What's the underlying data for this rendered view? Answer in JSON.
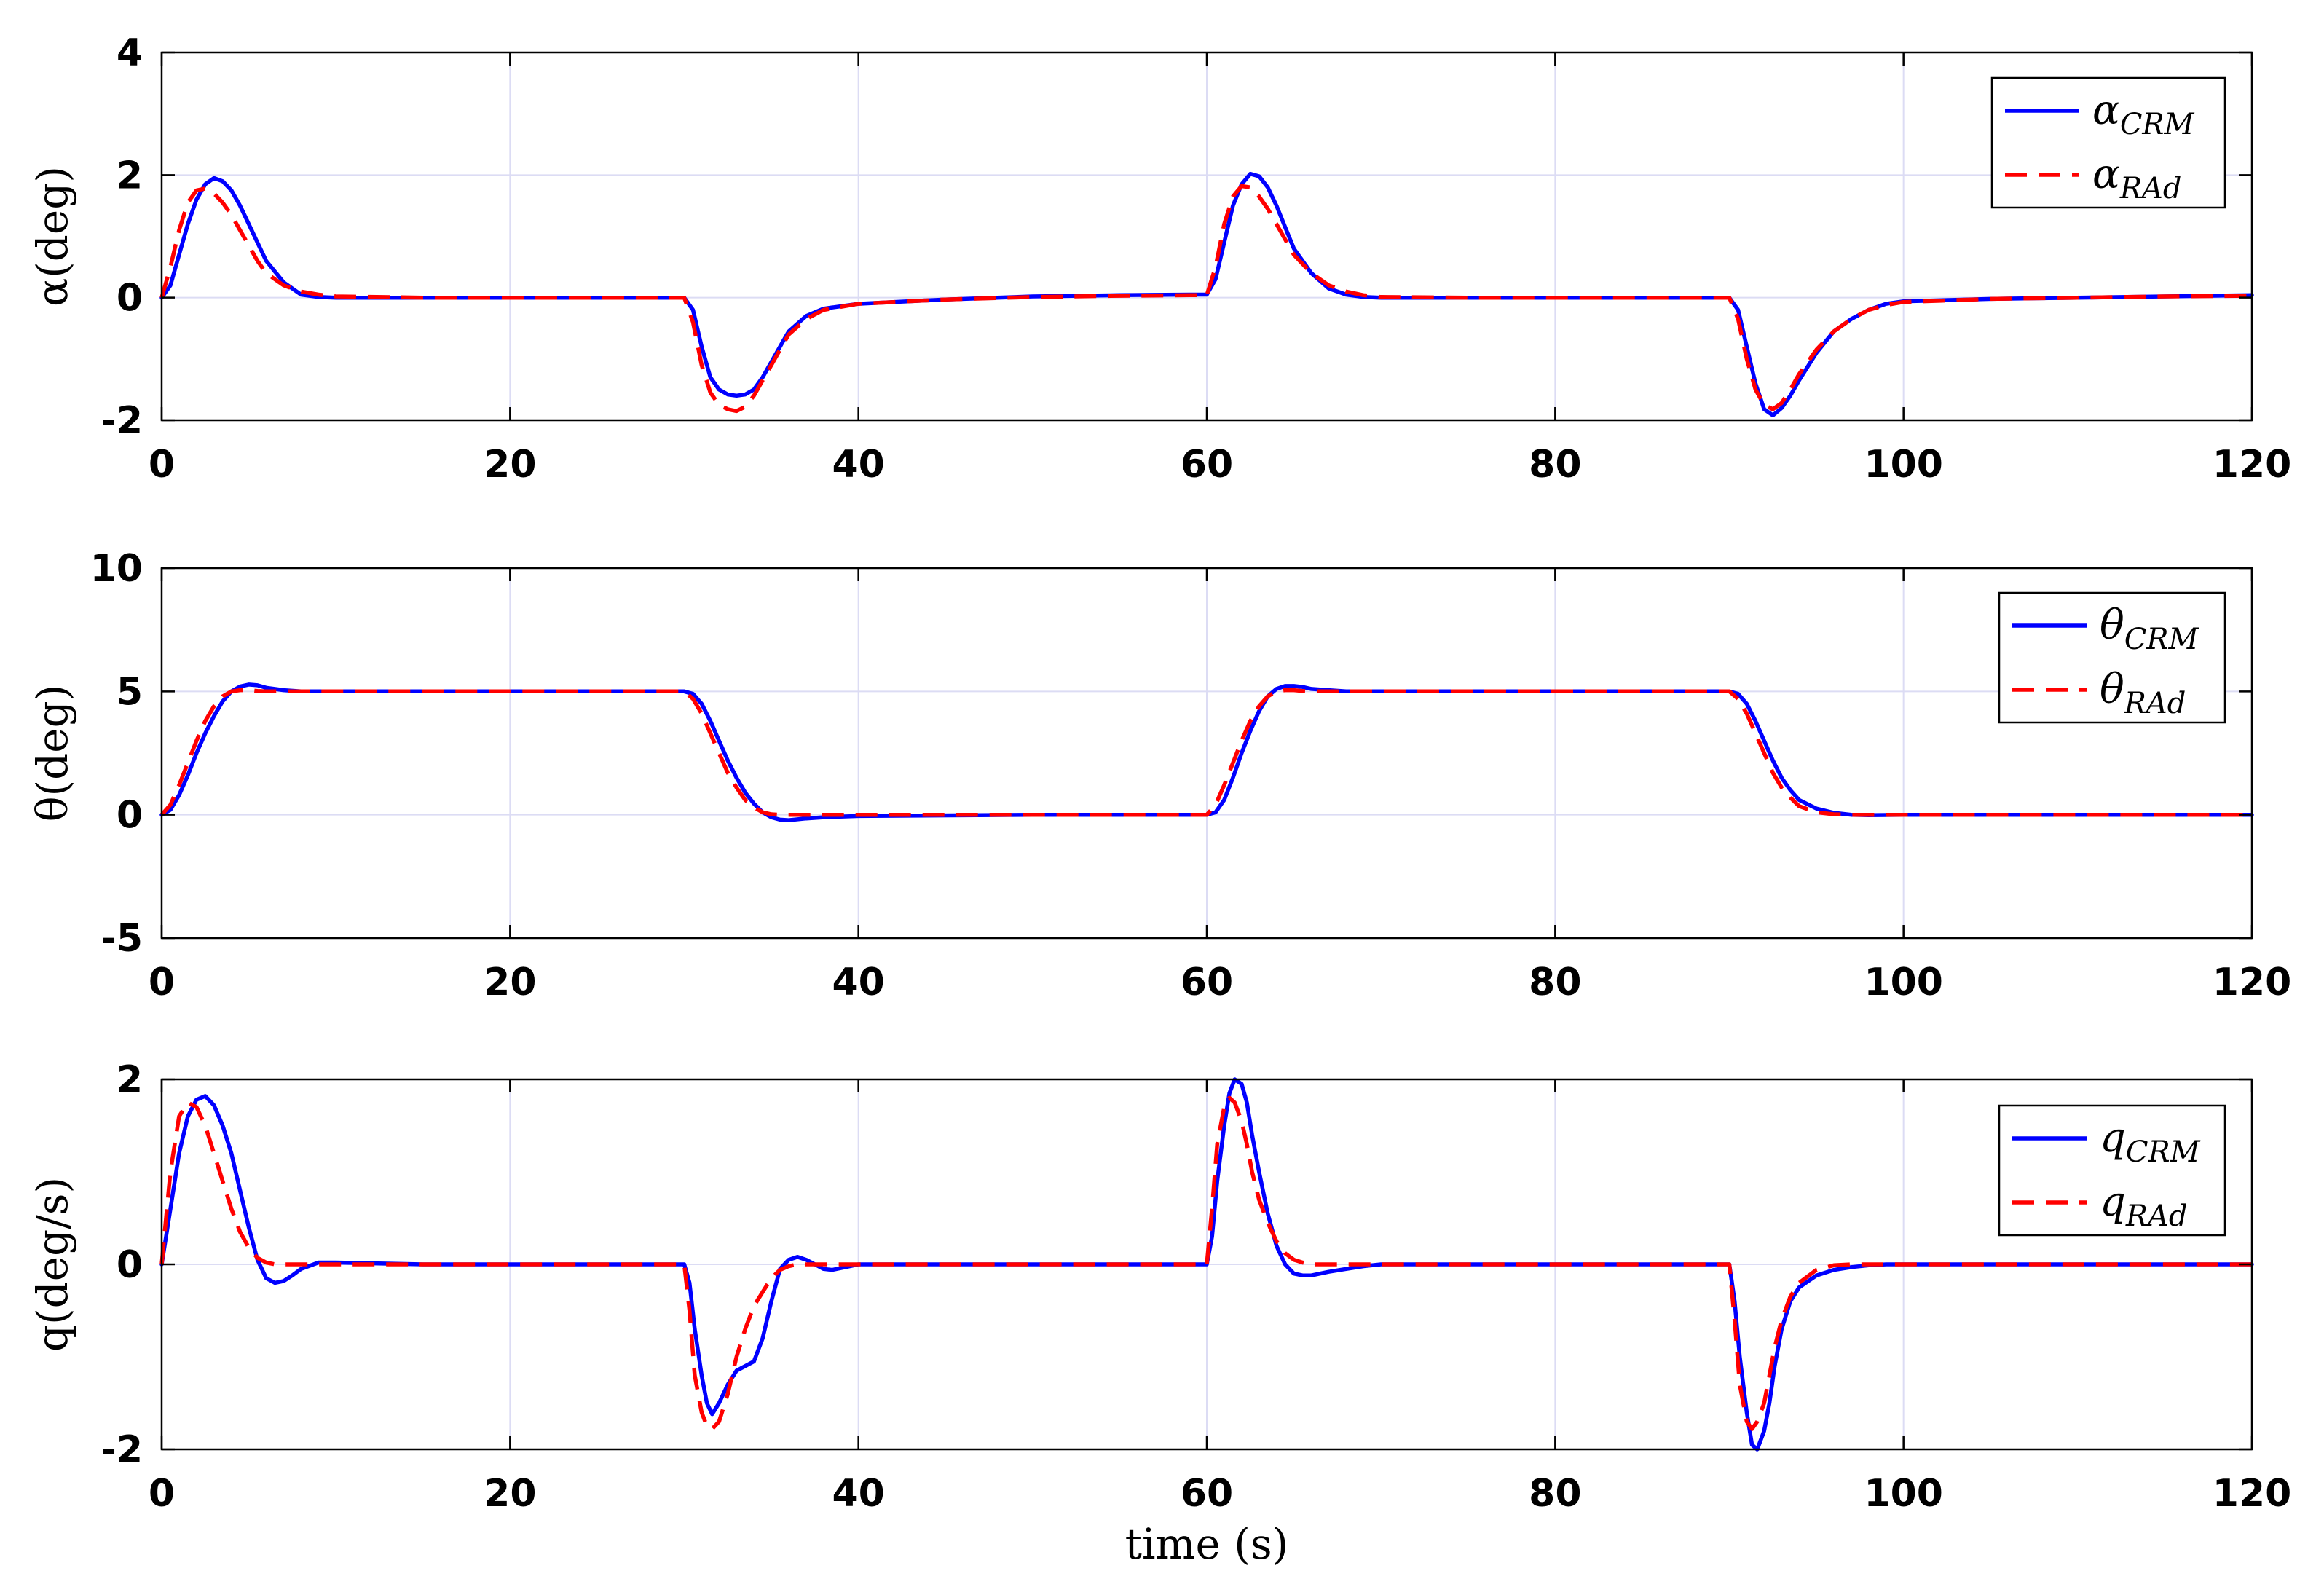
{
  "chart_data": [
    {
      "type": "line",
      "ylabel": "α(deg)",
      "xlabel": "",
      "xlim": [
        0,
        120
      ],
      "ylim": [
        -2,
        4
      ],
      "xticks": [
        "0",
        "20",
        "40",
        "60",
        "80",
        "100",
        "120"
      ],
      "yticks": [
        "-2",
        "0",
        "2",
        "4"
      ],
      "grid": true,
      "legend_position": "top-right",
      "colors": {
        "CRM": "#0000ff",
        "RAd": "#ff0000"
      },
      "series": [
        {
          "name": "α_CRM",
          "legend_base": "α",
          "legend_sub": "CRM",
          "style": "solid",
          "x": [
            0,
            0.5,
            1,
            1.5,
            2,
            2.5,
            3,
            3.5,
            4,
            4.5,
            5,
            5.5,
            6,
            7,
            8,
            9,
            10,
            15,
            20,
            25,
            29,
            30,
            30.5,
            31,
            31.5,
            32,
            32.5,
            33,
            33.5,
            34,
            34.5,
            35,
            35.5,
            36,
            37,
            38,
            40,
            45,
            50,
            55,
            59,
            60,
            60.5,
            61,
            61.5,
            62,
            62.5,
            63,
            63.5,
            64,
            64.5,
            65,
            66,
            67,
            68,
            69,
            70,
            75,
            80,
            85,
            89,
            90,
            90.5,
            91,
            91.5,
            92,
            92.5,
            93,
            93.5,
            94,
            95,
            96,
            97,
            98,
            99,
            100,
            105,
            110,
            115,
            120
          ],
          "y": [
            0,
            0.2,
            0.7,
            1.2,
            1.6,
            1.85,
            1.95,
            1.9,
            1.75,
            1.5,
            1.2,
            0.9,
            0.6,
            0.25,
            0.05,
            0.01,
            0,
            0,
            0,
            0,
            0,
            0,
            -0.2,
            -0.8,
            -1.3,
            -1.5,
            -1.58,
            -1.6,
            -1.58,
            -1.5,
            -1.3,
            -1.05,
            -0.8,
            -0.55,
            -0.3,
            -0.18,
            -0.1,
            -0.03,
            0.02,
            0.04,
            0.05,
            0.05,
            0.3,
            0.9,
            1.5,
            1.85,
            2.02,
            1.98,
            1.8,
            1.5,
            1.15,
            0.8,
            0.4,
            0.15,
            0.05,
            0.01,
            0,
            0,
            0,
            0,
            0,
            0,
            -0.2,
            -0.8,
            -1.4,
            -1.82,
            -1.92,
            -1.8,
            -1.6,
            -1.35,
            -0.9,
            -0.55,
            -0.35,
            -0.2,
            -0.1,
            -0.06,
            -0.02,
            0,
            0.02,
            0.04
          ]
        },
        {
          "name": "α_RAd",
          "legend_base": "α",
          "legend_sub": "RAd",
          "style": "dashed",
          "x": [
            0,
            0.5,
            1,
            1.5,
            2,
            2.5,
            3,
            3.5,
            4,
            4.5,
            5,
            5.5,
            6,
            7,
            8,
            9,
            10,
            15,
            20,
            25,
            29,
            30,
            30.5,
            31,
            31.5,
            32,
            32.5,
            33,
            33.5,
            34,
            34.5,
            35,
            35.5,
            36,
            37,
            38,
            40,
            45,
            50,
            55,
            59,
            60,
            60.5,
            61,
            61.5,
            62,
            62.5,
            63,
            63.5,
            64,
            64.5,
            65,
            66,
            67,
            68,
            69,
            70,
            75,
            80,
            85,
            89,
            90,
            90.5,
            91,
            91.5,
            92,
            92.5,
            93,
            93.5,
            94,
            95,
            96,
            97,
            98,
            99,
            100,
            105,
            110,
            115,
            120
          ],
          "y": [
            0,
            0.5,
            1.1,
            1.55,
            1.75,
            1.78,
            1.7,
            1.55,
            1.35,
            1.1,
            0.85,
            0.6,
            0.4,
            0.2,
            0.1,
            0.05,
            0.02,
            0,
            0,
            0,
            0,
            0,
            -0.4,
            -1.1,
            -1.55,
            -1.75,
            -1.82,
            -1.85,
            -1.78,
            -1.6,
            -1.35,
            -1.1,
            -0.85,
            -0.6,
            -0.35,
            -0.2,
            -0.1,
            -0.03,
            0.01,
            0.03,
            0.04,
            0.04,
            0.5,
            1.2,
            1.65,
            1.82,
            1.8,
            1.65,
            1.45,
            1.2,
            0.95,
            0.7,
            0.4,
            0.2,
            0.1,
            0.04,
            0.01,
            0,
            0,
            0,
            0,
            0,
            -0.35,
            -1.0,
            -1.5,
            -1.75,
            -1.82,
            -1.72,
            -1.5,
            -1.25,
            -0.85,
            -0.55,
            -0.35,
            -0.2,
            -0.12,
            -0.07,
            -0.02,
            0,
            0.02,
            0.03
          ]
        }
      ]
    },
    {
      "type": "line",
      "ylabel": "θ(deg)",
      "xlabel": "",
      "xlim": [
        0,
        120
      ],
      "ylim": [
        -5,
        10
      ],
      "xticks": [
        "0",
        "20",
        "40",
        "60",
        "80",
        "100",
        "120"
      ],
      "yticks": [
        "-5",
        "0",
        "5",
        "10"
      ],
      "grid": true,
      "legend_position": "top-right",
      "colors": {
        "CRM": "#0000ff",
        "RAd": "#ff0000"
      },
      "series": [
        {
          "name": "θ_CRM",
          "legend_base": "θ",
          "legend_sub": "CRM",
          "style": "solid",
          "x": [
            0,
            0.5,
            1,
            1.5,
            2,
            2.5,
            3,
            3.5,
            4,
            4.5,
            5,
            5.5,
            6,
            7,
            8,
            10,
            20,
            29,
            30,
            30.5,
            31,
            31.5,
            32,
            32.5,
            33,
            33.5,
            34,
            34.5,
            35,
            35.5,
            36,
            37,
            38,
            40,
            50,
            59,
            60,
            60.5,
            61,
            61.5,
            62,
            62.5,
            63,
            63.5,
            64,
            64.5,
            65,
            65.5,
            66,
            67,
            68,
            70,
            80,
            89,
            90,
            90.5,
            91,
            91.5,
            92,
            92.5,
            93,
            93.5,
            94,
            95,
            96,
            97,
            98,
            100,
            110,
            120
          ],
          "y": [
            0,
            0.2,
            0.8,
            1.6,
            2.5,
            3.3,
            4.0,
            4.6,
            5.0,
            5.2,
            5.28,
            5.25,
            5.15,
            5.05,
            5.0,
            5.0,
            5.0,
            5.0,
            5.0,
            4.9,
            4.5,
            3.8,
            3.0,
            2.2,
            1.5,
            0.9,
            0.45,
            0.1,
            -0.1,
            -0.2,
            -0.22,
            -0.15,
            -0.1,
            -0.05,
            0,
            0,
            0,
            0.1,
            0.6,
            1.5,
            2.5,
            3.4,
            4.2,
            4.8,
            5.1,
            5.22,
            5.22,
            5.18,
            5.1,
            5.05,
            5.0,
            5.0,
            5.0,
            5.0,
            5.0,
            4.9,
            4.5,
            3.8,
            3.0,
            2.2,
            1.5,
            1.0,
            0.6,
            0.25,
            0.08,
            0,
            -0.02,
            0,
            0,
            0
          ]
        },
        {
          "name": "θ_RAd",
          "legend_base": "θ",
          "legend_sub": "RAd",
          "style": "dashed",
          "x": [
            0,
            0.5,
            1,
            1.5,
            2,
            2.5,
            3,
            3.5,
            4,
            4.5,
            5,
            5.5,
            6,
            7,
            8,
            10,
            20,
            29,
            30,
            30.5,
            31,
            31.5,
            32,
            32.5,
            33,
            33.5,
            34,
            34.5,
            35,
            35.5,
            36,
            37,
            38,
            40,
            50,
            59,
            60,
            60.5,
            61,
            61.5,
            62,
            62.5,
            63,
            63.5,
            64,
            64.5,
            65,
            65.5,
            66,
            67,
            68,
            70,
            80,
            89,
            90,
            90.5,
            91,
            91.5,
            92,
            92.5,
            93,
            93.5,
            94,
            95,
            96,
            97,
            98,
            100,
            110,
            120
          ],
          "y": [
            0,
            0.4,
            1.2,
            2.1,
            3.0,
            3.8,
            4.4,
            4.8,
            5.0,
            5.05,
            5.05,
            5.02,
            5.0,
            5.0,
            5.0,
            5.0,
            5.0,
            5.0,
            5.0,
            4.7,
            4.1,
            3.3,
            2.5,
            1.7,
            1.1,
            0.6,
            0.3,
            0.1,
            0.02,
            0,
            0,
            0,
            0,
            0,
            0,
            0,
            0,
            0.4,
            1.2,
            2.1,
            3.0,
            3.8,
            4.4,
            4.8,
            5.0,
            5.05,
            5.05,
            5.02,
            5.0,
            5.0,
            5.0,
            5.0,
            5.0,
            5.0,
            5.0,
            4.7,
            4.1,
            3.3,
            2.5,
            1.7,
            1.1,
            0.7,
            0.35,
            0.1,
            0.02,
            0,
            0,
            0,
            0,
            0
          ]
        }
      ]
    },
    {
      "type": "line",
      "ylabel": "q(deg/s)",
      "xlabel": "time (s)",
      "xlim": [
        0,
        120
      ],
      "ylim": [
        -2,
        2
      ],
      "xticks": [
        "0",
        "20",
        "40",
        "60",
        "80",
        "100",
        "120"
      ],
      "yticks": [
        "-2",
        "0",
        "2"
      ],
      "grid": true,
      "legend_position": "top-right",
      "colors": {
        "CRM": "#0000ff",
        "RAd": "#ff0000"
      },
      "series": [
        {
          "name": "q_CRM",
          "legend_base": "q",
          "legend_sub": "CRM",
          "style": "solid",
          "x": [
            0,
            0.5,
            1,
            1.5,
            2,
            2.5,
            3,
            3.5,
            4,
            4.5,
            5,
            5.5,
            6,
            6.5,
            7,
            7.5,
            8,
            9,
            10,
            15,
            20,
            25,
            30,
            30.3,
            30.6,
            31,
            31.3,
            31.6,
            32,
            32.5,
            33,
            33.5,
            34,
            34.5,
            35,
            35.5,
            36,
            36.5,
            37,
            37.5,
            38,
            38.5,
            39,
            40,
            50,
            60,
            60.3,
            60.6,
            61,
            61.3,
            61.6,
            62,
            62.3,
            62.6,
            63,
            63.5,
            64,
            64.5,
            65,
            65.5,
            66,
            66.5,
            67,
            68,
            69,
            70,
            80,
            90,
            90.3,
            90.6,
            91,
            91.3,
            91.6,
            92,
            92.3,
            92.6,
            93,
            93.5,
            94,
            95,
            96,
            97,
            98,
            99,
            100,
            110,
            120
          ],
          "y": [
            0,
            0.6,
            1.2,
            1.6,
            1.78,
            1.82,
            1.72,
            1.5,
            1.2,
            0.8,
            0.4,
            0.05,
            -0.15,
            -0.2,
            -0.18,
            -0.12,
            -0.05,
            0.02,
            0.02,
            0,
            0,
            0,
            0,
            -0.2,
            -0.7,
            -1.2,
            -1.5,
            -1.62,
            -1.5,
            -1.3,
            -1.15,
            -1.1,
            -1.05,
            -0.8,
            -0.4,
            -0.05,
            0.05,
            0.08,
            0.05,
            0.0,
            -0.05,
            -0.06,
            -0.04,
            0,
            0,
            0,
            0.3,
            0.9,
            1.5,
            1.85,
            2.0,
            1.95,
            1.75,
            1.4,
            1.0,
            0.55,
            0.2,
            0,
            -0.1,
            -0.12,
            -0.12,
            -0.1,
            -0.08,
            -0.05,
            -0.02,
            0,
            0,
            0,
            -0.4,
            -1.0,
            -1.6,
            -1.95,
            -2.0,
            -1.8,
            -1.5,
            -1.1,
            -0.7,
            -0.4,
            -0.25,
            -0.12,
            -0.06,
            -0.03,
            -0.01,
            0,
            0,
            0,
            0
          ]
        },
        {
          "name": "q_RAd",
          "legend_base": "q",
          "legend_sub": "RAd",
          "style": "dashed",
          "x": [
            0,
            0.5,
            1,
            1.5,
            2,
            2.5,
            3,
            3.5,
            4,
            4.5,
            5,
            5.5,
            6,
            6.5,
            7,
            7.5,
            8,
            9,
            10,
            15,
            20,
            25,
            30,
            30.3,
            30.6,
            31,
            31.3,
            31.6,
            32,
            32.5,
            33,
            33.5,
            34,
            34.5,
            35,
            35.5,
            36,
            36.5,
            37,
            37.5,
            38,
            38.5,
            39,
            40,
            50,
            60,
            60.3,
            60.6,
            61,
            61.3,
            61.6,
            62,
            62.3,
            62.6,
            63,
            63.5,
            64,
            64.5,
            65,
            65.5,
            66,
            66.5,
            67,
            68,
            69,
            70,
            80,
            90,
            90.3,
            90.6,
            91,
            91.3,
            91.6,
            92,
            92.3,
            92.6,
            93,
            93.5,
            94,
            95,
            96,
            97,
            98,
            99,
            100,
            110,
            120
          ],
          "y": [
            0,
            1.0,
            1.6,
            1.75,
            1.7,
            1.5,
            1.2,
            0.9,
            0.6,
            0.35,
            0.18,
            0.07,
            0.02,
            0,
            0,
            0,
            0,
            0,
            0,
            0,
            0,
            0,
            0,
            -0.5,
            -1.2,
            -1.6,
            -1.75,
            -1.78,
            -1.7,
            -1.4,
            -1.0,
            -0.7,
            -0.45,
            -0.3,
            -0.15,
            -0.06,
            -0.02,
            0,
            0,
            0,
            0,
            0,
            0,
            0,
            0,
            0,
            0.6,
            1.3,
            1.7,
            1.8,
            1.75,
            1.55,
            1.3,
            1.0,
            0.7,
            0.45,
            0.25,
            0.12,
            0.05,
            0.02,
            0,
            0,
            0,
            0,
            0,
            0,
            0,
            0,
            -0.6,
            -1.3,
            -1.7,
            -1.78,
            -1.7,
            -1.5,
            -1.2,
            -0.9,
            -0.6,
            -0.35,
            -0.2,
            -0.06,
            -0.01,
            0,
            0,
            0,
            0,
            0,
            0
          ]
        }
      ]
    }
  ]
}
